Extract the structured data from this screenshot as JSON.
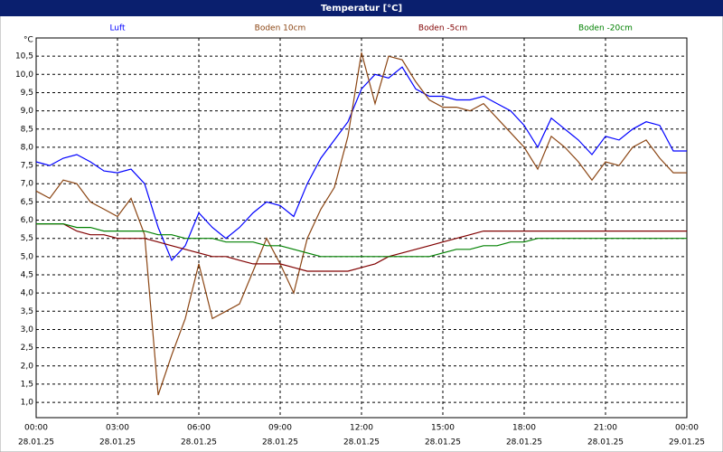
{
  "chart_data": {
    "type": "line",
    "title": "Temperatur [°C]",
    "y_unit": "°C",
    "x": [
      0,
      0.5,
      1,
      1.5,
      2,
      2.5,
      3,
      3.5,
      4,
      4.5,
      5,
      5.5,
      6,
      6.5,
      7,
      7.5,
      8,
      8.5,
      9,
      9.5,
      10,
      10.5,
      11,
      11.5,
      12,
      12.5,
      13,
      13.5,
      14,
      14.5,
      15,
      15.5,
      16,
      16.5,
      17,
      17.5,
      18,
      18.5,
      19,
      19.5,
      20,
      20.5,
      21,
      21.5,
      22,
      22.5,
      23,
      23.5,
      24
    ],
    "series": [
      {
        "name": "Luft",
        "color": "#0000ff",
        "values": [
          7.6,
          7.5,
          7.7,
          7.8,
          7.6,
          7.35,
          7.3,
          7.4,
          7.0,
          5.8,
          4.9,
          5.3,
          6.2,
          5.8,
          5.5,
          5.8,
          6.2,
          6.5,
          6.4,
          6.1,
          7.0,
          7.7,
          8.2,
          8.7,
          9.6,
          10.0,
          9.9,
          10.2,
          9.6,
          9.4,
          9.4,
          9.3,
          9.3,
          9.4,
          9.2,
          9.0,
          8.6,
          8.0,
          8.8,
          8.5,
          8.2,
          7.8,
          8.3,
          8.2,
          8.5,
          8.7,
          8.6,
          7.9,
          7.9
        ]
      },
      {
        "name": "Boden 10cm",
        "color": "#8b4513",
        "values": [
          6.8,
          6.6,
          7.1,
          7.0,
          6.5,
          6.3,
          6.1,
          6.6,
          5.6,
          1.2,
          2.3,
          3.3,
          4.8,
          3.3,
          3.5,
          3.7,
          4.6,
          5.5,
          4.8,
          4.0,
          5.5,
          6.3,
          6.9,
          8.3,
          10.6,
          9.2,
          10.5,
          10.4,
          9.8,
          9.3,
          9.1,
          9.1,
          9.0,
          9.2,
          8.8,
          8.4,
          8.0,
          7.4,
          8.3,
          8.0,
          7.6,
          7.1,
          7.6,
          7.5,
          8.0,
          8.2,
          7.7,
          7.3,
          7.3
        ]
      },
      {
        "name": "Boden -5cm",
        "color": "#800000",
        "values": [
          5.9,
          5.9,
          5.9,
          5.7,
          5.6,
          5.6,
          5.5,
          5.5,
          5.5,
          5.4,
          5.3,
          5.2,
          5.1,
          5.0,
          5.0,
          4.9,
          4.8,
          4.8,
          4.8,
          4.7,
          4.6,
          4.6,
          4.6,
          4.6,
          4.7,
          4.8,
          5.0,
          5.1,
          5.2,
          5.3,
          5.4,
          5.5,
          5.6,
          5.7,
          5.7,
          5.7,
          5.7,
          5.7,
          5.7,
          5.7,
          5.7,
          5.7,
          5.7,
          5.7,
          5.7,
          5.7,
          5.7,
          5.7,
          5.7
        ]
      },
      {
        "name": "Boden -20cm",
        "color": "#008000",
        "values": [
          5.9,
          5.9,
          5.9,
          5.8,
          5.8,
          5.7,
          5.7,
          5.7,
          5.7,
          5.6,
          5.6,
          5.5,
          5.5,
          5.5,
          5.4,
          5.4,
          5.4,
          5.3,
          5.3,
          5.2,
          5.1,
          5.0,
          5.0,
          5.0,
          5.0,
          5.0,
          5.0,
          5.0,
          5.0,
          5.0,
          5.1,
          5.2,
          5.2,
          5.3,
          5.3,
          5.4,
          5.4,
          5.5,
          5.5,
          5.5,
          5.5,
          5.5,
          5.5,
          5.5,
          5.5,
          5.5,
          5.5,
          5.5,
          5.5
        ]
      }
    ],
    "xlim": [
      0,
      24
    ],
    "xticks": [
      {
        "value": 0,
        "label": "00:00"
      },
      {
        "value": 3,
        "label": "03:00"
      },
      {
        "value": 6,
        "label": "06:00"
      },
      {
        "value": 9,
        "label": "09:00"
      },
      {
        "value": 12,
        "label": "12:00"
      },
      {
        "value": 15,
        "label": "15:00"
      },
      {
        "value": 18,
        "label": "18:00"
      },
      {
        "value": 21,
        "label": "21:00"
      },
      {
        "value": 24,
        "label": "00:00"
      }
    ],
    "xtick_dates": [
      "28.01.25",
      "28.01.25",
      "28.01.25",
      "28.01.25",
      "28.01.25",
      "28.01.25",
      "28.01.25",
      "28.01.25",
      "29.01.25"
    ],
    "ylim": [
      0.58,
      11.0
    ],
    "yticks": [
      {
        "value": 1,
        "label": "1,0"
      },
      {
        "value": 1.5,
        "label": "1,5"
      },
      {
        "value": 2,
        "label": "2,0"
      },
      {
        "value": 2.5,
        "label": "2,5"
      },
      {
        "value": 3,
        "label": "3,0"
      },
      {
        "value": 3.5,
        "label": "3,5"
      },
      {
        "value": 4,
        "label": "4,0"
      },
      {
        "value": 4.5,
        "label": "4,5"
      },
      {
        "value": 5,
        "label": "5,0"
      },
      {
        "value": 5.5,
        "label": "5,5"
      },
      {
        "value": 6,
        "label": "6,0"
      },
      {
        "value": 6.5,
        "label": "6,5"
      },
      {
        "value": 7,
        "label": "7,0"
      },
      {
        "value": 7.5,
        "label": "7,5"
      },
      {
        "value": 8,
        "label": "8,0"
      },
      {
        "value": 8.5,
        "label": "8,5"
      },
      {
        "value": 9,
        "label": "9,0"
      },
      {
        "value": 9.5,
        "label": "9,5"
      },
      {
        "value": 10,
        "label": "10,0"
      },
      {
        "value": 10.5,
        "label": "10,5"
      }
    ],
    "grid": true
  }
}
